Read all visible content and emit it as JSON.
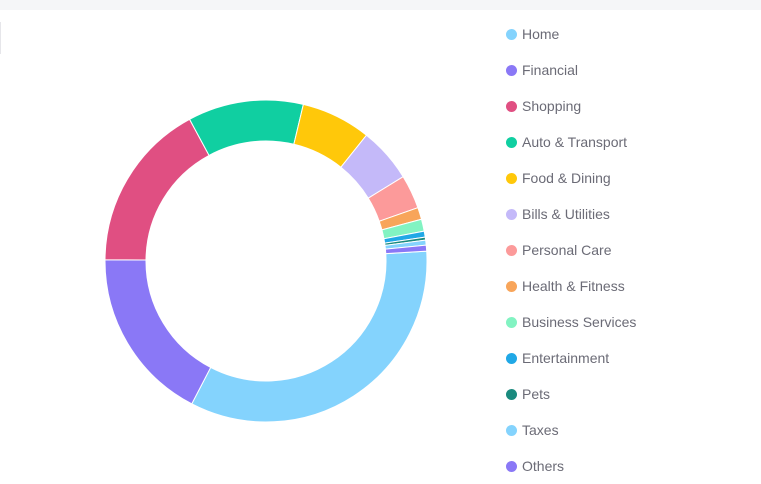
{
  "chart_data": {
    "type": "pie",
    "style": "donut",
    "title": "",
    "legend_position": "right",
    "categories": [
      "Home",
      "Financial",
      "Shopping",
      "Auto & Transport",
      "Food & Dining",
      "Bills & Utilities",
      "Personal Care",
      "Health & Fitness",
      "Business Services",
      "Entertainment",
      "Pets",
      "Taxes",
      "Others"
    ],
    "values": [
      33.6,
      17.5,
      17.0,
      11.6,
      7.0,
      5.5,
      3.4,
      1.2,
      1.2,
      0.6,
      0.3,
      0.5,
      0.6
    ],
    "colors": [
      "#84d3fd",
      "#8a78f6",
      "#e04f82",
      "#10cfa1",
      "#ffc80a",
      "#c4b9f9",
      "#fc9a9a",
      "#f8a55a",
      "#82f3c2",
      "#20a8e6",
      "#1a8a7e",
      "#84d3fd",
      "#8a78f6"
    ]
  }
}
